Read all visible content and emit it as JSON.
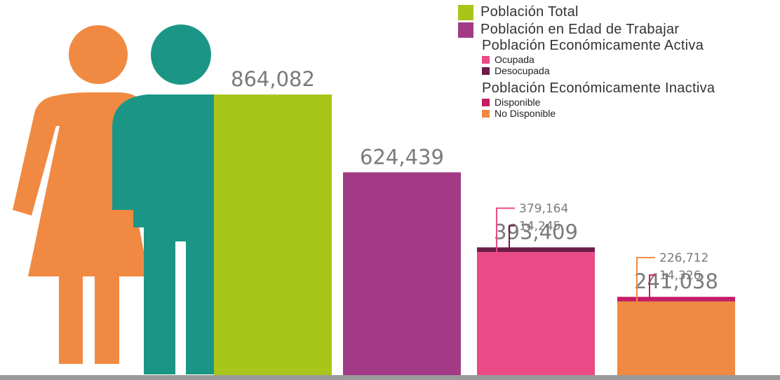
{
  "chart_data": {
    "type": "bar",
    "title": "",
    "xlabel": "",
    "ylabel": "",
    "ylim": [
      0,
      1000000
    ],
    "categories": [
      "Población Total",
      "Población en Edad de Trabajar",
      "Población Económicamente Activa",
      "Población Económicamente Inactiva"
    ],
    "bars": [
      {
        "total": 864082,
        "total_label": "864,082",
        "segments": [
          {
            "name": "Población Total",
            "value": 864082,
            "color": "#a8c61a"
          }
        ]
      },
      {
        "total": 624439,
        "total_label": "624,439",
        "segments": [
          {
            "name": "Población en Edad de Trabajar",
            "value": 624439,
            "color": "#a33a86"
          }
        ]
      },
      {
        "total": 393409,
        "total_label": "393,409",
        "segments": [
          {
            "name": "Ocupada",
            "value": 379164,
            "label": "379,164",
            "color": "#ea4a86"
          },
          {
            "name": "Desocupada",
            "value": 14245,
            "label": "14,245",
            "color": "#6b1d4a"
          }
        ]
      },
      {
        "total": 241038,
        "total_label": "241,038",
        "segments": [
          {
            "name": "No Disponible",
            "value": 226712,
            "label": "226,712",
            "color": "#f08a42"
          },
          {
            "name": "Disponible",
            "value": 14326,
            "label": "14,326",
            "color": "#c41d63"
          }
        ]
      }
    ],
    "legend_position": "top-right",
    "grid": false
  },
  "legend": {
    "total": {
      "label": "Población Total",
      "color": "#a8c61a"
    },
    "pet": {
      "label": "Población en Edad de Trabajar",
      "color": "#a33a86"
    },
    "pea_head": "Población Económicamente Activa",
    "ocupada": {
      "label": "Ocupada",
      "color": "#ea4a86"
    },
    "desocupada": {
      "label": "Desocupada",
      "color": "#6b1d4a"
    },
    "pei_head": "Población Económicamente Inactiva",
    "disponible": {
      "label": "Disponible",
      "color": "#c41d63"
    },
    "no_disponible": {
      "label": "No Disponible",
      "color": "#f08a42"
    }
  },
  "illustration": {
    "woman_color": "#f08a42",
    "man_color": "#1b9686",
    "baseline_color": "#9a9a9a"
  }
}
